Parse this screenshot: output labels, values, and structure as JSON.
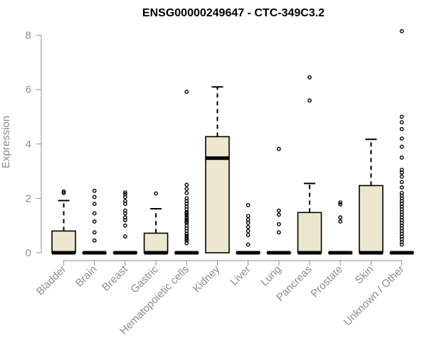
{
  "chart_data": {
    "type": "boxplot",
    "title": "ENSG00000249647 - CTC-349C3.2",
    "xlabel": "",
    "ylabel": "Expression",
    "ylim": [
      0,
      8.3
    ],
    "yticks": [
      0,
      2,
      4,
      6,
      8
    ],
    "categories": [
      "Bladder",
      "Brain",
      "Breast",
      "Gastric",
      "Hematopoietic cells",
      "Kidney",
      "Liver",
      "Lung",
      "Pancreas",
      "Prostate",
      "Skin",
      "Unknown / Other"
    ],
    "box_color": "#ede7cd",
    "boxes": [
      {
        "q1": 0,
        "median": 0,
        "q3": 0.8,
        "whisker_low": 0,
        "whisker_high": 1.92,
        "outliers": [
          2.2,
          2.25
        ]
      },
      {
        "q1": 0,
        "median": 0,
        "q3": 0,
        "whisker_low": 0,
        "whisker_high": 0,
        "outliers": [
          0.45,
          0.75,
          1.15,
          1.45,
          1.8,
          2.05,
          2.28
        ]
      },
      {
        "q1": 0,
        "median": 0,
        "q3": 0,
        "whisker_low": 0,
        "whisker_high": 0,
        "outliers": [
          0.6,
          1.0,
          1.2,
          1.3,
          1.45,
          1.55,
          1.8,
          1.9,
          2.05,
          2.15,
          2.22
        ]
      },
      {
        "q1": 0,
        "median": 0,
        "q3": 0.72,
        "whisker_low": 0,
        "whisker_high": 1.62,
        "outliers": [
          2.18
        ]
      },
      {
        "q1": 0,
        "median": 0,
        "q3": 0,
        "whisker_low": 0,
        "whisker_high": 0,
        "outliers": [
          0.35,
          0.45,
          0.5,
          0.55,
          0.62,
          0.7,
          0.8,
          0.9,
          1.0,
          1.1,
          1.15,
          1.22,
          1.3,
          1.38,
          1.45,
          1.5,
          1.6,
          1.7,
          1.8,
          1.9,
          2.0,
          2.2,
          2.35,
          2.5,
          5.92
        ]
      },
      {
        "q1": 0,
        "median": 3.48,
        "q3": 4.27,
        "whisker_low": 0,
        "whisker_high": 6.1,
        "outliers": []
      },
      {
        "q1": 0,
        "median": 0,
        "q3": 0,
        "whisker_low": 0,
        "whisker_high": 0,
        "outliers": [
          0.3,
          0.65,
          0.8,
          0.95,
          1.1,
          1.22,
          1.35,
          1.75
        ]
      },
      {
        "q1": 0,
        "median": 0,
        "q3": 0,
        "whisker_low": 0,
        "whisker_high": 0,
        "outliers": [
          0.75,
          1.05,
          1.4,
          1.55,
          3.82
        ]
      },
      {
        "q1": 0,
        "median": 0,
        "q3": 1.48,
        "whisker_low": 0,
        "whisker_high": 2.55,
        "outliers": [
          5.6,
          6.45
        ]
      },
      {
        "q1": 0,
        "median": 0,
        "q3": 0,
        "whisker_low": 0,
        "whisker_high": 0,
        "outliers": [
          1.15,
          1.3,
          1.78,
          1.85
        ]
      },
      {
        "q1": 0,
        "median": 0,
        "q3": 2.47,
        "whisker_low": 0,
        "whisker_high": 4.17,
        "outliers": []
      },
      {
        "q1": 0,
        "median": 0,
        "q3": 0,
        "whisker_low": 0,
        "whisker_high": 0,
        "outliers": [
          0.3,
          0.4,
          0.5,
          0.6,
          0.7,
          0.8,
          0.9,
          1.0,
          1.1,
          1.2,
          1.3,
          1.4,
          1.5,
          1.6,
          1.7,
          1.8,
          1.9,
          2.0,
          2.1,
          2.2,
          2.4,
          2.6,
          2.8,
          2.95,
          3.05,
          3.5,
          3.9,
          4.2,
          4.55,
          4.8,
          5.0,
          8.15
        ]
      }
    ]
  }
}
